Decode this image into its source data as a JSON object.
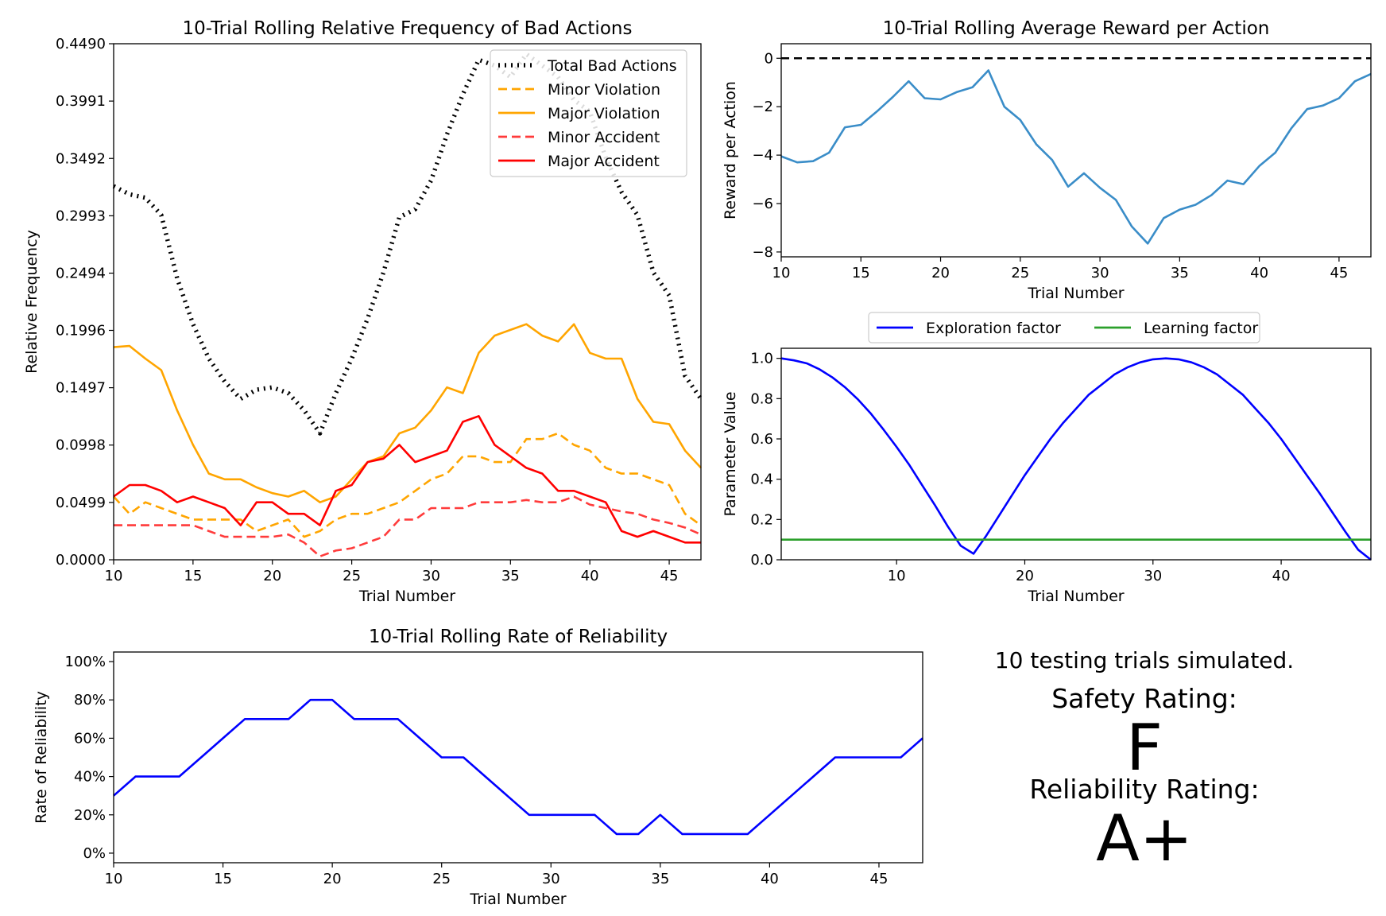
{
  "chart_data": [
    {
      "type": "line",
      "title": "10-Trial Rolling Relative Frequency of Bad Actions",
      "xlabel": "Trial Number",
      "ylabel": "Relative Frequency",
      "xlim": [
        10,
        47
      ],
      "ylim": [
        0,
        0.449
      ],
      "xticks": [
        "10",
        "15",
        "20",
        "25",
        "30",
        "35",
        "40",
        "45"
      ],
      "yticks": [
        "0.0000",
        "0.0499",
        "0.0998",
        "0.1497",
        "0.1996",
        "0.2494",
        "0.2993",
        "0.3492",
        "0.3991",
        "0.4490"
      ],
      "legend": "top-right",
      "x": [
        10,
        11,
        12,
        13,
        14,
        15,
        16,
        17,
        18,
        19,
        20,
        21,
        22,
        23,
        24,
        25,
        26,
        27,
        28,
        29,
        30,
        31,
        32,
        33,
        34,
        35,
        36,
        37,
        38,
        39,
        40,
        41,
        42,
        43,
        44,
        45,
        46,
        47
      ],
      "series": [
        {
          "name": "Total Bad Actions",
          "color": "#000000",
          "style": "dotted",
          "values": [
            0.325,
            0.318,
            0.315,
            0.3,
            0.245,
            0.205,
            0.175,
            0.155,
            0.14,
            0.148,
            0.15,
            0.145,
            0.13,
            0.11,
            0.145,
            0.175,
            0.21,
            0.25,
            0.298,
            0.305,
            0.33,
            0.37,
            0.405,
            0.435,
            0.43,
            0.42,
            0.44,
            0.43,
            0.42,
            0.4,
            0.39,
            0.35,
            0.32,
            0.3,
            0.25,
            0.23,
            0.16,
            0.14
          ]
        },
        {
          "name": "Minor Violation",
          "color": "#ffa500",
          "style": "dashed",
          "values": [
            0.055,
            0.04,
            0.05,
            0.045,
            0.04,
            0.035,
            0.035,
            0.035,
            0.035,
            0.025,
            0.03,
            0.035,
            0.02,
            0.025,
            0.035,
            0.04,
            0.04,
            0.045,
            0.05,
            0.06,
            0.07,
            0.075,
            0.09,
            0.09,
            0.085,
            0.085,
            0.105,
            0.105,
            0.11,
            0.1,
            0.095,
            0.08,
            0.075,
            0.075,
            0.07,
            0.065,
            0.04,
            0.03
          ]
        },
        {
          "name": "Major Violation",
          "color": "#ffa500",
          "style": "solid",
          "values": [
            0.185,
            0.186,
            0.175,
            0.165,
            0.13,
            0.1,
            0.075,
            0.07,
            0.07,
            0.063,
            0.058,
            0.055,
            0.06,
            0.05,
            0.055,
            0.07,
            0.085,
            0.09,
            0.11,
            0.115,
            0.13,
            0.15,
            0.145,
            0.18,
            0.195,
            0.2,
            0.205,
            0.195,
            0.19,
            0.205,
            0.18,
            0.175,
            0.175,
            0.14,
            0.12,
            0.118,
            0.095,
            0.08
          ]
        },
        {
          "name": "Minor Accident",
          "color": "#ff3b3b",
          "style": "dashed",
          "values": [
            0.03,
            0.03,
            0.03,
            0.03,
            0.03,
            0.03,
            0.025,
            0.02,
            0.02,
            0.02,
            0.02,
            0.022,
            0.015,
            0.003,
            0.008,
            0.01,
            0.015,
            0.02,
            0.035,
            0.035,
            0.045,
            0.045,
            0.045,
            0.05,
            0.05,
            0.05,
            0.052,
            0.05,
            0.05,
            0.055,
            0.048,
            0.045,
            0.042,
            0.04,
            0.035,
            0.032,
            0.028,
            0.022
          ]
        },
        {
          "name": "Major Accident",
          "color": "#ff0000",
          "style": "solid",
          "values": [
            0.055,
            0.065,
            0.065,
            0.06,
            0.05,
            0.055,
            0.05,
            0.045,
            0.03,
            0.05,
            0.05,
            0.04,
            0.04,
            0.03,
            0.06,
            0.065,
            0.085,
            0.088,
            0.1,
            0.085,
            0.09,
            0.095,
            0.12,
            0.125,
            0.1,
            0.09,
            0.08,
            0.075,
            0.06,
            0.06,
            0.055,
            0.05,
            0.025,
            0.02,
            0.025,
            0.02,
            0.015,
            0.015
          ]
        }
      ]
    },
    {
      "type": "line",
      "title": "10-Trial Rolling Average Reward per Action",
      "xlabel": "Trial Number",
      "ylabel": "Reward per Action",
      "xlim": [
        10,
        47
      ],
      "ylim": [
        -8.2,
        0.6
      ],
      "xticks": [
        "10",
        "15",
        "20",
        "25",
        "30",
        "35",
        "40",
        "45"
      ],
      "yticks": [
        "0",
        "−2",
        "−4",
        "−6",
        "−8"
      ],
      "reference_line": {
        "y": 0,
        "color": "#000000",
        "style": "dashed"
      },
      "x": [
        10,
        11,
        12,
        13,
        14,
        15,
        16,
        17,
        18,
        19,
        20,
        21,
        22,
        23,
        24,
        25,
        26,
        27,
        28,
        29,
        30,
        31,
        32,
        33,
        34,
        35,
        36,
        37,
        38,
        39,
        40,
        41,
        42,
        43,
        44,
        45,
        46,
        47
      ],
      "series": [
        {
          "color": "#3a8dc8",
          "values": [
            -4.05,
            -4.3,
            -4.25,
            -3.9,
            -2.85,
            -2.75,
            -2.2,
            -1.6,
            -0.95,
            -1.65,
            -1.7,
            -1.4,
            -1.2,
            -0.5,
            -2.0,
            -2.55,
            -3.55,
            -4.2,
            -5.3,
            -4.75,
            -5.35,
            -5.85,
            -6.95,
            -7.65,
            -6.6,
            -6.25,
            -6.05,
            -5.65,
            -5.05,
            -5.2,
            -4.45,
            -3.9,
            -2.9,
            -2.1,
            -1.95,
            -1.65,
            -0.95,
            -0.65
          ]
        }
      ]
    },
    {
      "type": "line",
      "xlabel": "Trial Number",
      "ylabel": "Parameter Value",
      "xlim": [
        1,
        47
      ],
      "ylim": [
        0,
        1.05
      ],
      "xticks": [
        "10",
        "20",
        "30",
        "40"
      ],
      "yticks": [
        "0.0",
        "0.2",
        "0.4",
        "0.6",
        "0.8",
        "1.0"
      ],
      "legend": "top-center (outside)",
      "series": [
        {
          "name": "Exploration factor",
          "color": "#0000ff",
          "x": [
            1,
            2,
            3,
            4,
            5,
            6,
            7,
            8,
            9,
            10,
            11,
            12,
            13,
            14,
            15,
            16,
            17,
            18,
            19,
            20,
            21,
            22,
            23,
            24,
            25,
            26,
            27,
            28,
            29,
            30,
            31,
            32,
            33,
            34,
            35,
            36,
            37,
            38,
            39,
            40,
            41,
            42,
            43,
            44,
            45,
            46,
            47
          ],
          "values": [
            1.0,
            0.99,
            0.975,
            0.945,
            0.905,
            0.855,
            0.795,
            0.725,
            0.645,
            0.56,
            0.47,
            0.37,
            0.27,
            0.165,
            0.07,
            0.03,
            0.12,
            0.22,
            0.32,
            0.42,
            0.51,
            0.6,
            0.68,
            0.75,
            0.82,
            0.87,
            0.92,
            0.955,
            0.98,
            0.995,
            1.0,
            0.995,
            0.98,
            0.955,
            0.92,
            0.87,
            0.82,
            0.75,
            0.68,
            0.6,
            0.51,
            0.42,
            0.33,
            0.235,
            0.14,
            0.05,
            0.0
          ]
        },
        {
          "name": "Learning factor",
          "color": "#2ca02c",
          "x": [
            1,
            47
          ],
          "values": [
            0.1,
            0.1
          ]
        }
      ]
    },
    {
      "type": "line",
      "title": "10-Trial Rolling Rate of Reliability",
      "xlabel": "Trial Number",
      "ylabel": "Rate of Reliability",
      "xlim": [
        10,
        47
      ],
      "ylim": [
        -5,
        105
      ],
      "xticks": [
        "10",
        "15",
        "20",
        "25",
        "30",
        "35",
        "40",
        "45"
      ],
      "yticks": [
        "0%",
        "20%",
        "40%",
        "60%",
        "80%",
        "100%"
      ],
      "x": [
        10,
        11,
        12,
        13,
        14,
        15,
        16,
        17,
        18,
        19,
        20,
        21,
        22,
        23,
        24,
        25,
        26,
        27,
        28,
        29,
        30,
        31,
        32,
        33,
        34,
        35,
        36,
        37,
        38,
        39,
        40,
        41,
        42,
        43,
        44,
        45,
        46,
        47
      ],
      "series": [
        {
          "color": "#0000ff",
          "values": [
            30,
            40,
            40,
            40,
            50,
            60,
            70,
            70,
            70,
            80,
            80,
            70,
            70,
            70,
            60,
            50,
            50,
            40,
            30,
            20,
            20,
            20,
            20,
            10,
            10,
            20,
            10,
            10,
            10,
            10,
            20,
            30,
            40,
            50,
            50,
            50,
            50,
            60
          ]
        }
      ]
    }
  ],
  "summary": {
    "trials_text": "10 testing trials simulated.",
    "safety_label": "Safety Rating:",
    "safety_value": "F",
    "safety_color": "#ff0000",
    "reliability_label": "Reliability Rating:",
    "reliability_value": "A+",
    "reliability_color": "#008000"
  }
}
